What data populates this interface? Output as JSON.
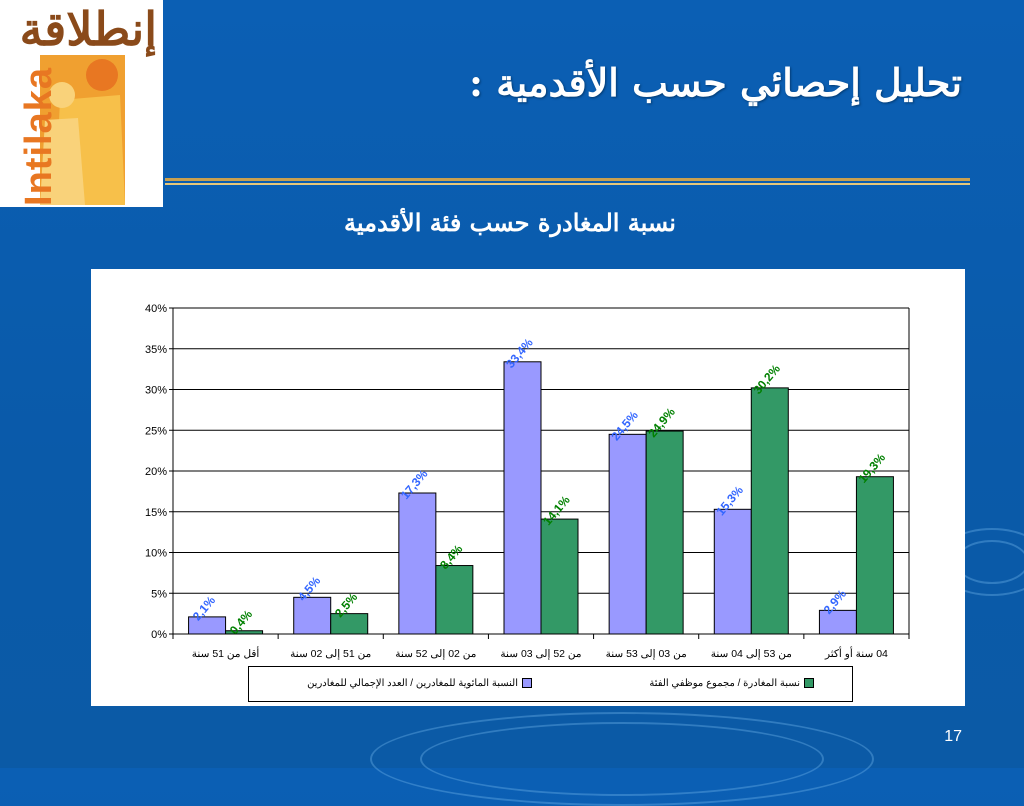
{
  "logo": {
    "arabic_text": "إنطلاقة",
    "latin_text": "Intilaka"
  },
  "slide": {
    "title": "تحليل إحصائي حسب الأقدمية :",
    "page_number": "17"
  },
  "colors": {
    "series1": "#9999ff",
    "series2": "#339966",
    "label1": "#3366ff",
    "label2": "#008000"
  },
  "chart_data": {
    "type": "bar",
    "title": "نسبة المغادرة حسب فئة الأقدمية",
    "categories": [
      "أقل من 51 سنة",
      "من 51 إلى 02 سنة",
      "من 02 إلى 52 سنة",
      "من 52 إلى 03 سنة",
      "من 03 إلى 53 سنة",
      "من 53 إلى 04 سنة",
      "04 سنة أو أكثر"
    ],
    "series": [
      {
        "name": "النسبة المائوية للمغادرين / العدد الإجمالي للمغادرين",
        "values": [
          2.1,
          4.5,
          17.3,
          33.4,
          24.5,
          15.3,
          2.9
        ],
        "labels": [
          "2,1%",
          "4,5%",
          "17,3%",
          "33,4%",
          "24,5%",
          "15,3%",
          "2,9%"
        ]
      },
      {
        "name": "نسبة المغادرة / مجموع موظفي الفئة",
        "values": [
          0.4,
          2.5,
          8.4,
          14.1,
          24.9,
          30.2,
          19.3
        ],
        "labels": [
          "0,4%",
          "2,5%",
          "8,4%",
          "14,1%",
          "24,9%",
          "30,2%",
          "19,3%"
        ]
      }
    ],
    "yticks": [
      "0%",
      "5%",
      "10%",
      "15%",
      "20%",
      "25%",
      "30%",
      "35%",
      "40%"
    ],
    "ylim": [
      0,
      40
    ],
    "grid": true,
    "legend_position": "bottom"
  }
}
